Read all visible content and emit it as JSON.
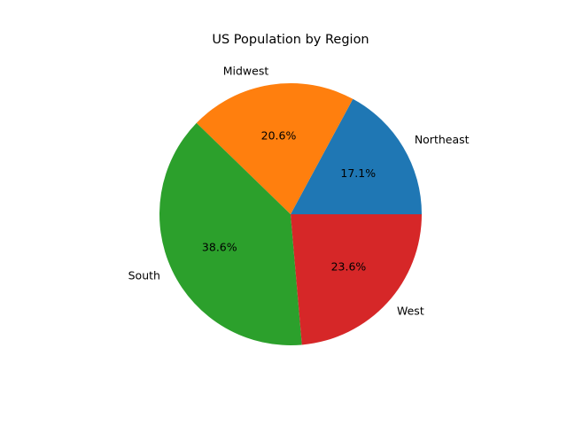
{
  "chart_data": {
    "type": "pie",
    "title": "US Population by Region",
    "categories": [
      "Northeast",
      "Midwest",
      "South",
      "West"
    ],
    "values": [
      17.1,
      20.6,
      38.6,
      23.6
    ],
    "value_labels": [
      "17.1%",
      "20.6%",
      "38.6%",
      "23.6%"
    ],
    "colors": [
      "#1f77b4",
      "#ff7f0e",
      "#2ca02c",
      "#d62728"
    ],
    "start_angle_deg": 0,
    "direction": "counterclockwise",
    "legend": "none"
  }
}
